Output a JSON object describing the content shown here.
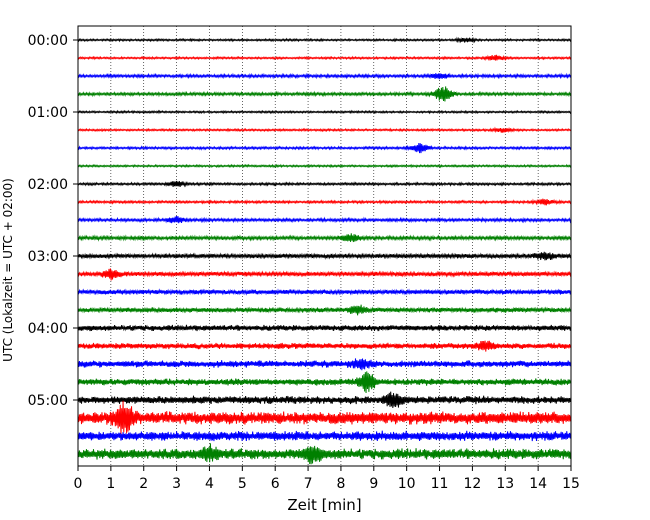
{
  "chart_data": {
    "type": "line",
    "subtype": "helicorder-seismogram",
    "title": "",
    "xlabel": "Zeit  [min]",
    "ylabel": "UTC (Lokalzeit = UTC + 02:00)",
    "xlim": [
      0,
      15
    ],
    "x_ticks": [
      0,
      1,
      2,
      3,
      4,
      5,
      6,
      7,
      8,
      9,
      10,
      11,
      12,
      13,
      14,
      15
    ],
    "y_tick_labels": [
      "00:00",
      "01:00",
      "02:00",
      "03:00",
      "04:00",
      "05:00"
    ],
    "grid": "vertical dotted lines at each minute",
    "trace_interval_minutes": 15,
    "trace_colors": [
      "#000000",
      "#ff0000",
      "#0000ff",
      "#008000"
    ],
    "traces": [
      {
        "start": "00:00",
        "amplitude": 0.1,
        "bursts": [
          {
            "x": 11.8,
            "amp": 0.2
          }
        ]
      },
      {
        "start": "00:15",
        "amplitude": 0.1,
        "bursts": [
          {
            "x": 12.7,
            "amp": 0.25
          }
        ]
      },
      {
        "start": "00:30",
        "amplitude": 0.15,
        "bursts": [
          {
            "x": 11.0,
            "amp": 0.3
          }
        ]
      },
      {
        "start": "00:45",
        "amplitude": 0.15,
        "bursts": [
          {
            "x": 11.1,
            "amp": 0.8
          }
        ]
      },
      {
        "start": "01:00",
        "amplitude": 0.1,
        "bursts": []
      },
      {
        "start": "01:15",
        "amplitude": 0.1,
        "bursts": [
          {
            "x": 12.9,
            "amp": 0.2
          }
        ]
      },
      {
        "start": "01:30",
        "amplitude": 0.12,
        "bursts": [
          {
            "x": 10.4,
            "amp": 0.5
          }
        ]
      },
      {
        "start": "01:45",
        "amplitude": 0.1,
        "bursts": []
      },
      {
        "start": "02:00",
        "amplitude": 0.12,
        "bursts": [
          {
            "x": 3.0,
            "amp": 0.3
          }
        ]
      },
      {
        "start": "02:15",
        "amplitude": 0.12,
        "bursts": [
          {
            "x": 14.2,
            "amp": 0.25
          }
        ]
      },
      {
        "start": "02:30",
        "amplitude": 0.15,
        "bursts": [
          {
            "x": 3.0,
            "amp": 0.35
          }
        ]
      },
      {
        "start": "02:45",
        "amplitude": 0.18,
        "bursts": [
          {
            "x": 8.3,
            "amp": 0.4
          }
        ]
      },
      {
        "start": "03:00",
        "amplitude": 0.22,
        "bursts": [
          {
            "x": 14.2,
            "amp": 0.35
          }
        ]
      },
      {
        "start": "03:15",
        "amplitude": 0.22,
        "bursts": [
          {
            "x": 1.0,
            "amp": 0.5
          }
        ]
      },
      {
        "start": "03:30",
        "amplitude": 0.25,
        "bursts": []
      },
      {
        "start": "03:45",
        "amplitude": 0.25,
        "bursts": [
          {
            "x": 8.5,
            "amp": 0.4
          }
        ]
      },
      {
        "start": "04:00",
        "amplitude": 0.3,
        "bursts": []
      },
      {
        "start": "04:15",
        "amplitude": 0.3,
        "bursts": [
          {
            "x": 12.4,
            "amp": 0.45
          }
        ]
      },
      {
        "start": "04:30",
        "amplitude": 0.35,
        "bursts": [
          {
            "x": 8.6,
            "amp": 0.4
          }
        ]
      },
      {
        "start": "04:45",
        "amplitude": 0.35,
        "bursts": [
          {
            "x": 8.8,
            "amp": 1.0
          }
        ]
      },
      {
        "start": "05:00",
        "amplitude": 0.4,
        "bursts": [
          {
            "x": 9.6,
            "amp": 0.6
          }
        ]
      },
      {
        "start": "05:15",
        "amplitude": 0.65,
        "bursts": [
          {
            "x": 1.4,
            "amp": 1.4
          }
        ]
      },
      {
        "start": "05:30",
        "amplitude": 0.5,
        "bursts": []
      },
      {
        "start": "05:45",
        "amplitude": 0.55,
        "bursts": [
          {
            "x": 4.0,
            "amp": 0.6
          },
          {
            "x": 7.1,
            "amp": 0.7
          }
        ]
      }
    ]
  }
}
